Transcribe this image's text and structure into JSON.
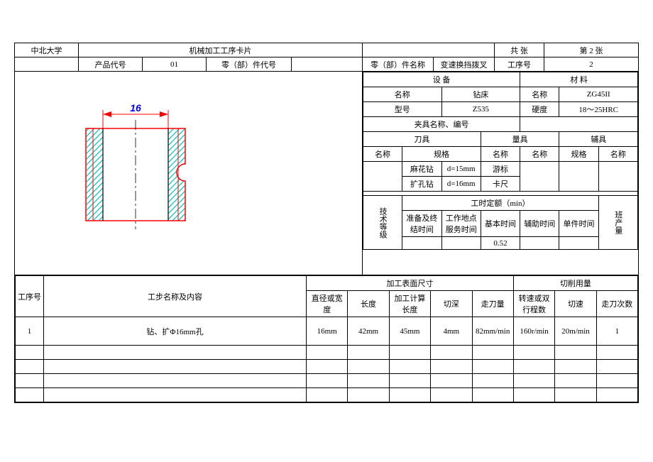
{
  "header": {
    "university": "中北大学",
    "title": "机械加工工序卡片",
    "page_total_label": "共   张",
    "page_current": "第 2 张",
    "product_code_label": "产品代号",
    "product_code": "01",
    "part_code_label": "零（部）件代号",
    "part_code": "",
    "part_name_label": "零（部）件名称",
    "part_name": "变速换挡拨叉",
    "proc_no_label": "工序号",
    "proc_no": "2"
  },
  "equipment": {
    "section_label": "设   备",
    "name_label": "名称",
    "name": "钻床",
    "model_label": "型号",
    "model": "Z535"
  },
  "material": {
    "section_label": "材   料",
    "name_label": "名称",
    "name": "ZG45II",
    "hardness_label": "硬度",
    "hardness": "18～25HRC"
  },
  "fixture": {
    "label": "夹具名称、编号",
    "value": ""
  },
  "tooling": {
    "tool_label": "刀具",
    "gauge_label": "量具",
    "aux_label": "辅具",
    "name_label": "名称",
    "spec_label": "规格",
    "rows": [
      {
        "tool_name": "麻花钻",
        "tool_spec": "d=15mm",
        "gauge_name": "游标"
      },
      {
        "tool_name": "扩孔钻",
        "tool_spec": "d=16mm",
        "gauge_name": "卡尺"
      }
    ]
  },
  "time_quota": {
    "tech_level_label": "技术等级",
    "section_label": "工时定额（min）",
    "prep_label": "准备及终结时间",
    "service_label": "工作地点服务时间",
    "basic_label": "基本时间",
    "aux_label": "辅助时间",
    "unit_label": "单件时间",
    "batch_label": "班产量",
    "basic_value": "0.52"
  },
  "proc_columns": {
    "step_no": "工序号",
    "step_name": "工步名称及内容",
    "surface_label": "加工表面尺寸",
    "cutting_label": "切削用量",
    "dia": "直径或宽度",
    "length": "长度",
    "calc_len": "加工计算长度",
    "depth": "切深",
    "feed": "走刀量",
    "speed": "转速或双 行程数",
    "cut_speed": "切速",
    "passes": "走刀次数"
  },
  "proc_rows": [
    {
      "no": "1",
      "name": "钻、扩Φ16mm孔",
      "dia": "16mm",
      "len": "42mm",
      "calc": "45mm",
      "depth": "4mm",
      "feed": "82mm/min",
      "speed": "160r/min",
      "cut": "20m/min",
      "passes": "1"
    },
    {
      "no": "",
      "name": "",
      "dia": "",
      "len": "",
      "calc": "",
      "depth": "",
      "feed": "",
      "speed": "",
      "cut": "",
      "passes": ""
    },
    {
      "no": "",
      "name": "",
      "dia": "",
      "len": "",
      "calc": "",
      "depth": "",
      "feed": "",
      "speed": "",
      "cut": "",
      "passes": ""
    },
    {
      "no": "",
      "name": "",
      "dia": "",
      "len": "",
      "calc": "",
      "depth": "",
      "feed": "",
      "speed": "",
      "cut": "",
      "passes": ""
    },
    {
      "no": "",
      "name": "",
      "dia": "",
      "len": "",
      "calc": "",
      "depth": "",
      "feed": "",
      "speed": "",
      "cut": "",
      "passes": ""
    }
  ],
  "drawing": {
    "dim_value": "16",
    "colors": {
      "outline": "#ff0000",
      "hatch": "#00c0c0",
      "dim_text": "#0000ff",
      "center": "#000000"
    }
  }
}
